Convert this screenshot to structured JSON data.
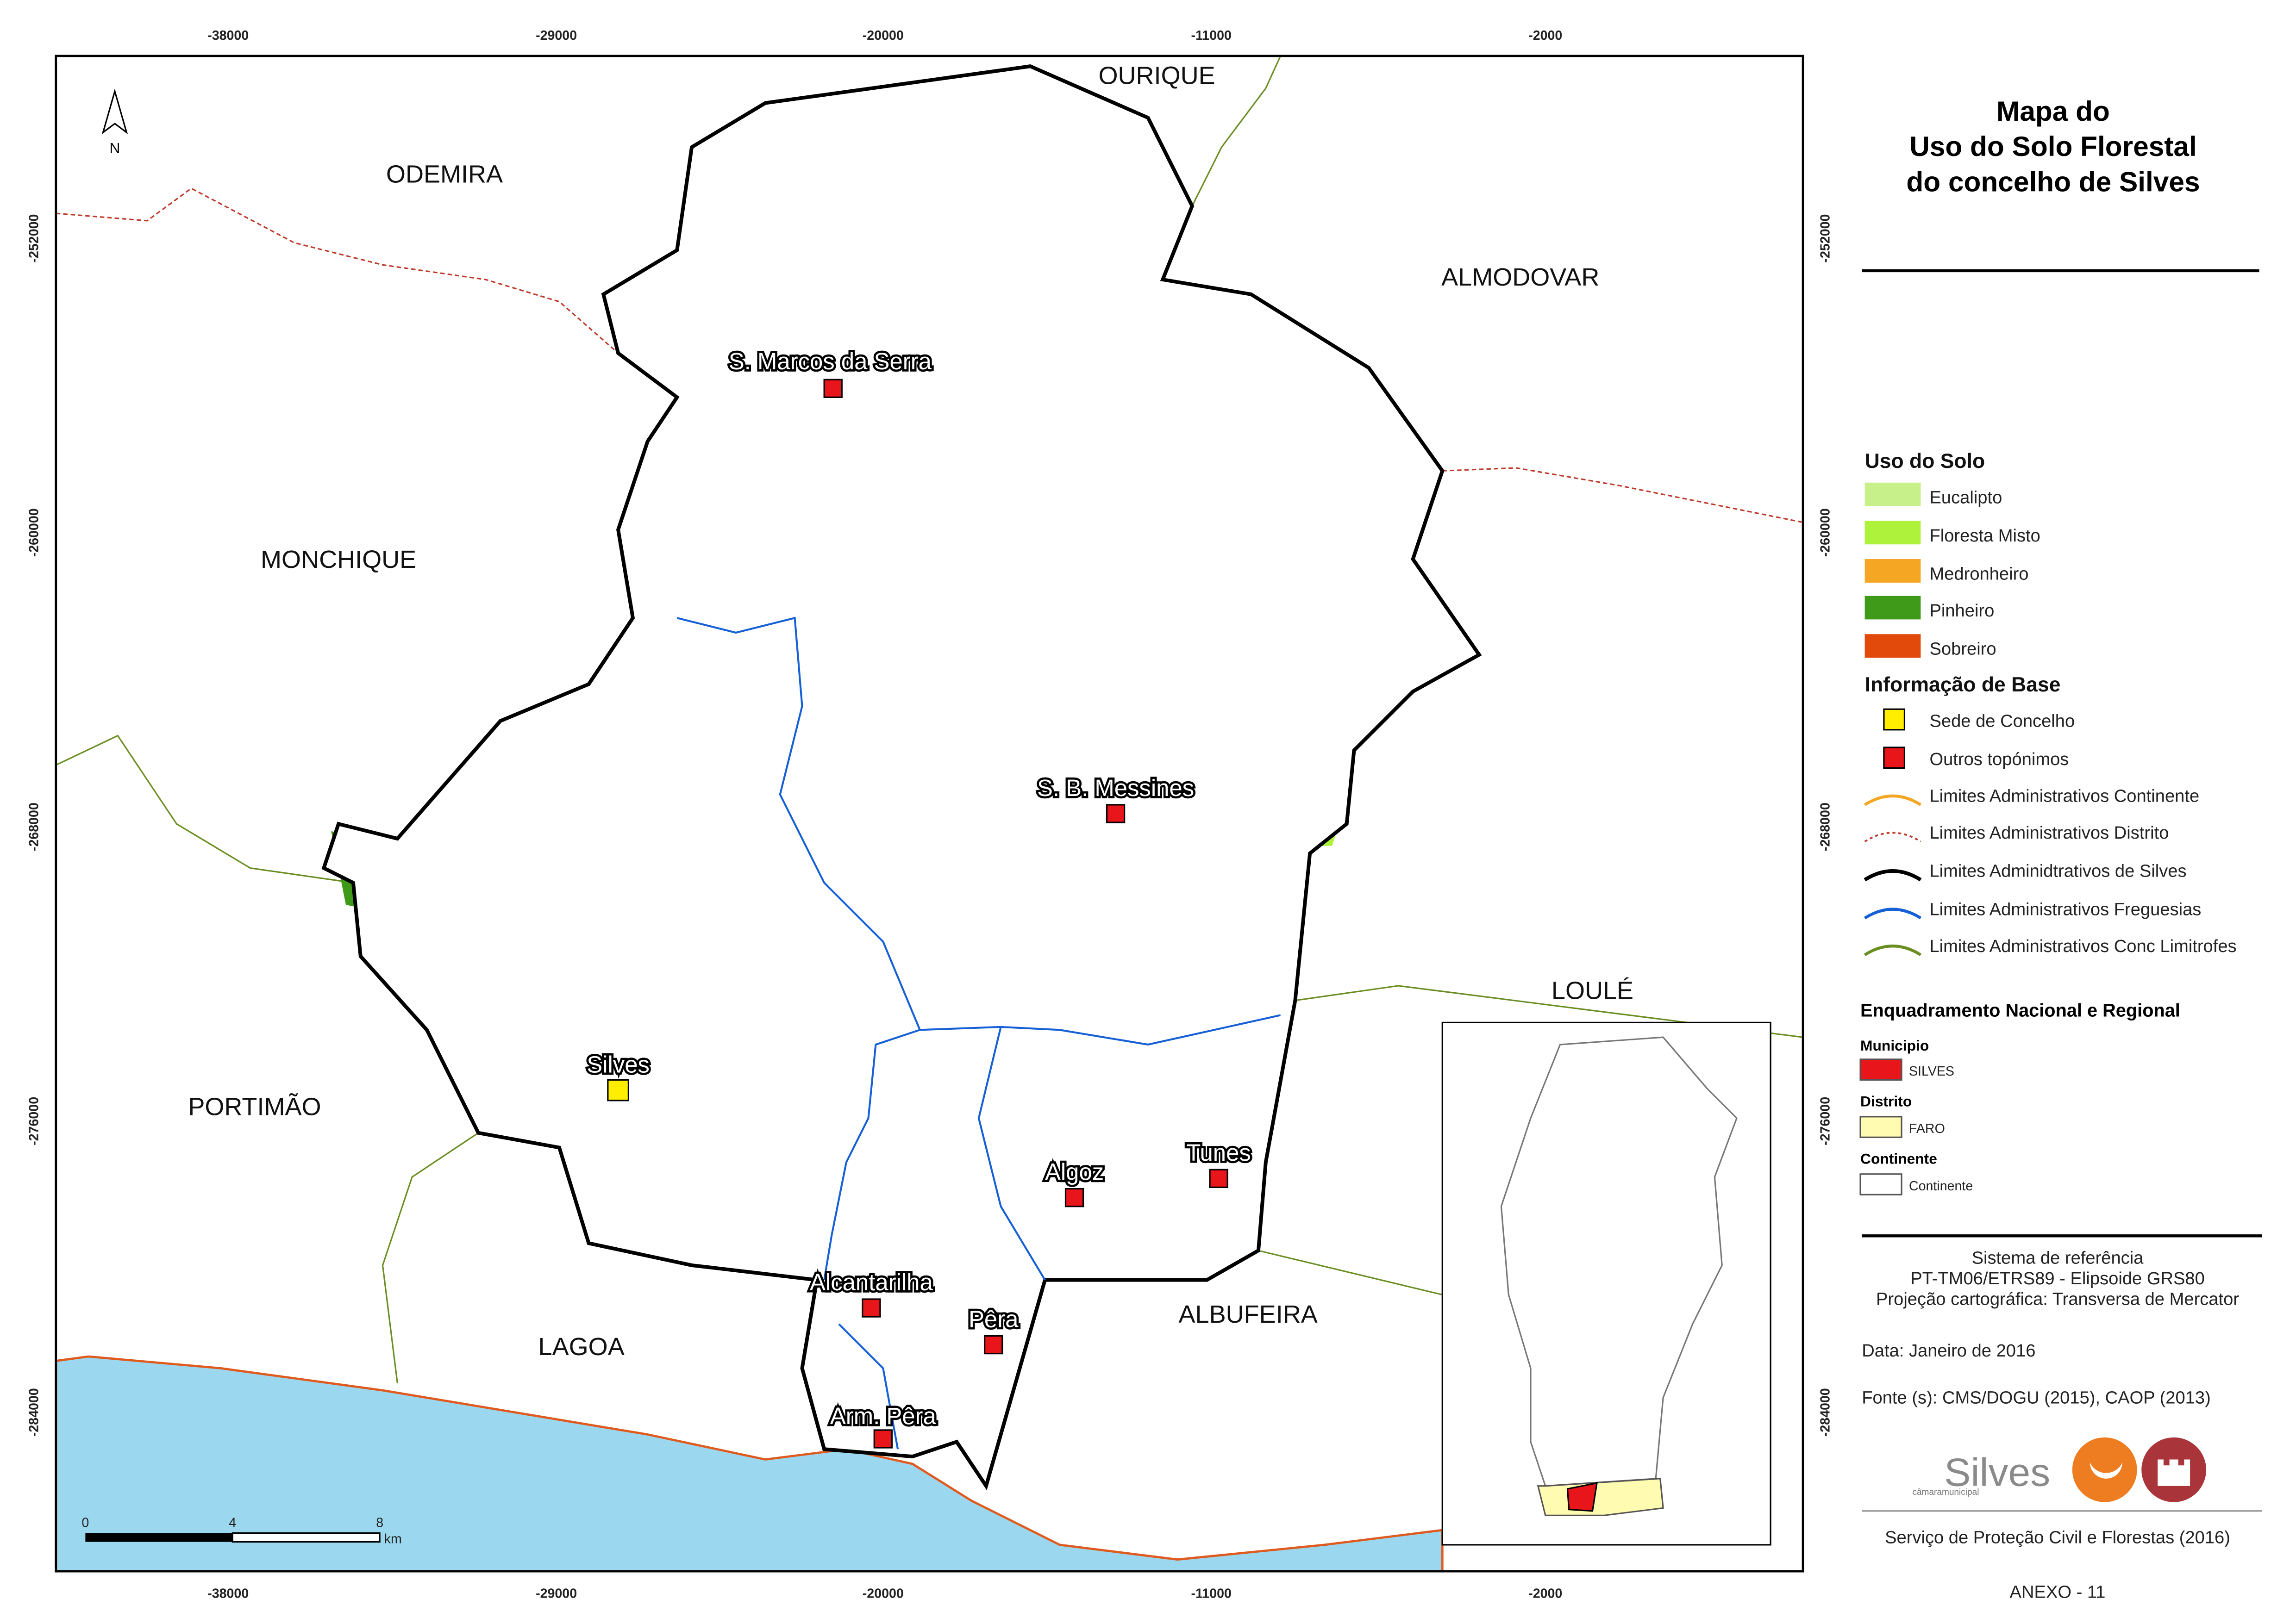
{
  "title": [
    "Mapa do",
    "Uso do Solo Florestal",
    "do concelho de Silves"
  ],
  "ticks": {
    "x": [
      "-38000",
      "-29000",
      "-20000",
      "-11000",
      "-2000"
    ],
    "y": [
      "-252000",
      "-260000",
      "-268000",
      "-276000",
      "-284000"
    ]
  },
  "regions": [
    "OURIQUE",
    "ODEMIRA",
    "ALMODOVAR",
    "MONCHIQUE",
    "PORTIMÃO",
    "LOULÉ",
    "LAGOA",
    "ALBUFEIRA"
  ],
  "towns": [
    "S. Marcos da Serra",
    "S. B. Messines",
    "Silves",
    "Algoz",
    "Tunes",
    "Alcantarilha",
    "Pêra",
    "Arm. Pêra"
  ],
  "north": "N",
  "scale": [
    "0",
    "4",
    "8",
    "km"
  ],
  "legend": {
    "land_use_title": "Uso do Solo",
    "land_use": [
      "Eucalipto",
      "Floresta Misto",
      "Medronheiro",
      "Pinheiro",
      "Sobreiro"
    ],
    "base_title": "Informação de Base",
    "base": [
      "Sede de Concelho",
      "Outros topónimos",
      "Limites Administrativos Continente",
      "Limites Administrativos Distrito",
      "Limites Adminidtrativos de Silves",
      "Limites Administrativos Freguesias",
      "Limites Administrativos Conc Limitrofes"
    ],
    "framing_title": "Enquadramento Nacional e Regional",
    "framing": [
      {
        "heading": "Municipio",
        "item": "SILVES"
      },
      {
        "heading": "Distrito",
        "item": "FARO"
      },
      {
        "heading": "Continente",
        "item": "Continente"
      }
    ]
  },
  "info": [
    "Sistema de referência",
    "PT-TM06/ETRS89 - Elipsoide GRS80",
    "Projeção cartográfica: Transversa de Mercator",
    "Data: Janeiro de 2016",
    "Fonte (s): CMS/DOGU (2015), CAOP (2013)"
  ],
  "logo": {
    "name": "Silves",
    "sub": "câmaramunicipal"
  },
  "footer": [
    "Serviço de Proteção Civil e Florestas (2016)",
    "ANEXO - 11"
  ]
}
